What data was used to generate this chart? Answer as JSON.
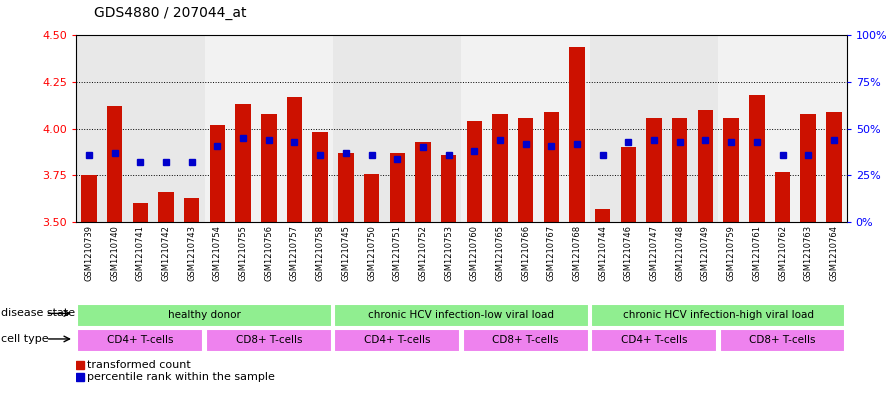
{
  "title": "GDS4880 / 207044_at",
  "samples": [
    "GSM1210739",
    "GSM1210740",
    "GSM1210741",
    "GSM1210742",
    "GSM1210743",
    "GSM1210754",
    "GSM1210755",
    "GSM1210756",
    "GSM1210757",
    "GSM1210758",
    "GSM1210745",
    "GSM1210750",
    "GSM1210751",
    "GSM1210752",
    "GSM1210753",
    "GSM1210760",
    "GSM1210765",
    "GSM1210766",
    "GSM1210767",
    "GSM1210768",
    "GSM1210744",
    "GSM1210746",
    "GSM1210747",
    "GSM1210748",
    "GSM1210749",
    "GSM1210759",
    "GSM1210761",
    "GSM1210762",
    "GSM1210763",
    "GSM1210764"
  ],
  "bar_values": [
    3.75,
    4.12,
    3.6,
    3.66,
    3.63,
    4.02,
    4.13,
    4.08,
    4.17,
    3.98,
    3.87,
    3.76,
    3.87,
    3.93,
    3.86,
    4.04,
    4.08,
    4.06,
    4.09,
    4.44,
    3.57,
    3.9,
    4.06,
    4.06,
    4.1,
    4.06,
    4.18,
    3.77,
    4.08,
    4.09
  ],
  "blue_values": [
    3.86,
    3.87,
    3.82,
    3.82,
    3.82,
    3.91,
    3.95,
    3.94,
    3.93,
    3.86,
    3.87,
    3.86,
    3.84,
    3.9,
    3.86,
    3.88,
    3.94,
    3.92,
    3.91,
    3.92,
    3.86,
    3.93,
    3.94,
    3.93,
    3.94,
    3.93,
    3.93,
    3.86,
    3.86,
    3.94
  ],
  "ylim": [
    3.5,
    4.5
  ],
  "yticks": [
    3.5,
    3.75,
    4.0,
    4.25,
    4.5
  ],
  "y_right_ticks": [
    0,
    25,
    50,
    75,
    100
  ],
  "bar_color": "#CC1100",
  "blue_color": "#0000CC",
  "disease_state_groups": [
    {
      "label": "healthy donor",
      "start": 0,
      "end": 9,
      "color": "#90EE90"
    },
    {
      "label": "chronic HCV infection-low viral load",
      "start": 10,
      "end": 19,
      "color": "#90EE90"
    },
    {
      "label": "chronic HCV infection-high viral load",
      "start": 20,
      "end": 29,
      "color": "#90EE90"
    }
  ],
  "cell_type_groups": [
    {
      "label": "CD4+ T-cells",
      "start": 0,
      "end": 4,
      "color": "#EE82EE"
    },
    {
      "label": "CD8+ T-cells",
      "start": 5,
      "end": 9,
      "color": "#EE82EE"
    },
    {
      "label": "CD4+ T-cells",
      "start": 10,
      "end": 14,
      "color": "#EE82EE"
    },
    {
      "label": "CD8+ T-cells",
      "start": 15,
      "end": 19,
      "color": "#EE82EE"
    },
    {
      "label": "CD4+ T-cells",
      "start": 20,
      "end": 24,
      "color": "#EE82EE"
    },
    {
      "label": "CD8+ T-cells",
      "start": 25,
      "end": 29,
      "color": "#EE82EE"
    }
  ],
  "band_colors": [
    "#E8E8E8",
    "#F2F2F2"
  ],
  "grid_color": "black",
  "grid_linestyle": "dotted",
  "tick_label_fontsize": 6,
  "axis_fontsize": 8,
  "title_fontsize": 10,
  "row_label_fontsize": 8,
  "annotation_fontsize": 7.5,
  "legend_fontsize": 8
}
